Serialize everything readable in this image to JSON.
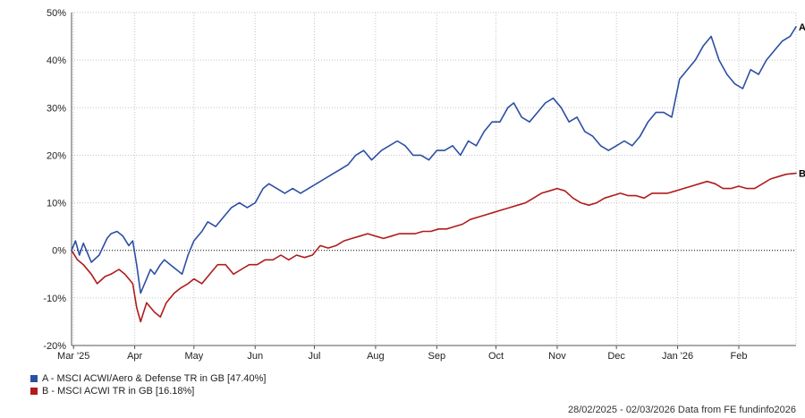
{
  "chart_data": {
    "type": "line",
    "ylim": [
      -20,
      50
    ],
    "y_ticks": [
      -20,
      -10,
      0,
      10,
      20,
      30,
      40,
      50
    ],
    "y_tick_suffix": "%",
    "grid": true,
    "x_tick_labels": [
      "Mar '25",
      "Apr",
      "May",
      "Jun",
      "Jul",
      "Aug",
      "Sep",
      "Oct",
      "Nov",
      "Dec",
      "Jan '26",
      "Feb"
    ],
    "x_tick_dates": [
      "2025-03-01",
      "2025-04-01",
      "2025-05-01",
      "2025-06-01",
      "2025-07-01",
      "2025-08-01",
      "2025-09-01",
      "2025-10-01",
      "2025-11-01",
      "2025-12-01",
      "2026-01-01",
      "2026-02-01"
    ],
    "x_range": [
      "2025-02-28",
      "2026-03-02"
    ],
    "series": [
      {
        "name": "A",
        "color": "#2b4fa3",
        "x": [
          "2025-02-28",
          "2025-03-02",
          "2025-03-04",
          "2025-03-06",
          "2025-03-08",
          "2025-03-10",
          "2025-03-14",
          "2025-03-18",
          "2025-03-20",
          "2025-03-23",
          "2025-03-26",
          "2025-03-29",
          "2025-03-31",
          "2025-04-02",
          "2025-04-04",
          "2025-04-07",
          "2025-04-09",
          "2025-04-11",
          "2025-04-14",
          "2025-04-16",
          "2025-04-19",
          "2025-04-22",
          "2025-04-25",
          "2025-04-28",
          "2025-05-01",
          "2025-05-05",
          "2025-05-08",
          "2025-05-12",
          "2025-05-16",
          "2025-05-20",
          "2025-05-24",
          "2025-05-28",
          "2025-06-01",
          "2025-06-05",
          "2025-06-08",
          "2025-06-12",
          "2025-06-16",
          "2025-06-20",
          "2025-06-24",
          "2025-06-28",
          "2025-07-02",
          "2025-07-06",
          "2025-07-10",
          "2025-07-14",
          "2025-07-18",
          "2025-07-22",
          "2025-07-26",
          "2025-07-30",
          "2025-08-04",
          "2025-08-08",
          "2025-08-12",
          "2025-08-16",
          "2025-08-20",
          "2025-08-24",
          "2025-08-28",
          "2025-09-01",
          "2025-09-05",
          "2025-09-09",
          "2025-09-13",
          "2025-09-17",
          "2025-09-21",
          "2025-09-25",
          "2025-09-29",
          "2025-10-03",
          "2025-10-07",
          "2025-10-10",
          "2025-10-14",
          "2025-10-18",
          "2025-10-22",
          "2025-10-26",
          "2025-10-30",
          "2025-11-03",
          "2025-11-07",
          "2025-11-11",
          "2025-11-15",
          "2025-11-19",
          "2025-11-23",
          "2025-11-27",
          "2025-12-01",
          "2025-12-05",
          "2025-12-09",
          "2025-12-13",
          "2025-12-17",
          "2025-12-21",
          "2025-12-25",
          "2025-12-29",
          "2026-01-02",
          "2026-01-06",
          "2026-01-10",
          "2026-01-14",
          "2026-01-18",
          "2026-01-22",
          "2026-01-26",
          "2026-01-30",
          "2026-02-03",
          "2026-02-07",
          "2026-02-11",
          "2026-02-15",
          "2026-02-19",
          "2026-02-23",
          "2026-02-27",
          "2026-03-02"
        ],
        "values": [
          0,
          2,
          -1,
          1.5,
          -0.5,
          -2.5,
          -1,
          2.5,
          3.5,
          4,
          3,
          1,
          2,
          -3,
          -9,
          -6,
          -4,
          -5,
          -3,
          -2,
          -3,
          -4,
          -5,
          -1,
          2,
          4,
          6,
          5,
          7,
          9,
          10,
          9,
          10,
          13,
          14,
          13,
          12,
          13,
          12,
          13,
          14,
          15,
          16,
          17,
          18,
          20,
          21,
          19,
          21,
          22,
          23,
          22,
          20,
          20,
          19,
          21,
          21,
          22,
          20,
          23,
          22,
          25,
          27,
          27,
          30,
          31,
          28,
          27,
          29,
          31,
          32,
          30,
          27,
          28,
          25,
          24,
          22,
          21,
          22,
          23,
          22,
          24,
          27,
          29,
          29,
          28,
          36,
          38,
          40,
          43,
          45,
          40,
          37,
          35,
          34,
          38,
          37,
          40,
          42,
          44,
          45,
          47
        ]
      },
      {
        "name": "B",
        "color": "#b01c1c",
        "x": [
          "2025-02-28",
          "2025-03-03",
          "2025-03-06",
          "2025-03-10",
          "2025-03-13",
          "2025-03-17",
          "2025-03-20",
          "2025-03-24",
          "2025-03-27",
          "2025-03-31",
          "2025-04-02",
          "2025-04-04",
          "2025-04-07",
          "2025-04-09",
          "2025-04-11",
          "2025-04-14",
          "2025-04-17",
          "2025-04-21",
          "2025-04-24",
          "2025-04-28",
          "2025-05-01",
          "2025-05-05",
          "2025-05-09",
          "2025-05-13",
          "2025-05-17",
          "2025-05-21",
          "2025-05-25",
          "2025-05-29",
          "2025-06-02",
          "2025-06-06",
          "2025-06-10",
          "2025-06-14",
          "2025-06-18",
          "2025-06-22",
          "2025-06-26",
          "2025-06-30",
          "2025-07-04",
          "2025-07-08",
          "2025-07-12",
          "2025-07-16",
          "2025-07-20",
          "2025-07-24",
          "2025-07-28",
          "2025-08-01",
          "2025-08-05",
          "2025-08-09",
          "2025-08-13",
          "2025-08-17",
          "2025-08-21",
          "2025-08-25",
          "2025-08-29",
          "2025-09-02",
          "2025-09-06",
          "2025-09-10",
          "2025-09-14",
          "2025-09-18",
          "2025-09-22",
          "2025-09-26",
          "2025-09-30",
          "2025-10-04",
          "2025-10-08",
          "2025-10-12",
          "2025-10-16",
          "2025-10-20",
          "2025-10-24",
          "2025-10-28",
          "2025-11-01",
          "2025-11-05",
          "2025-11-09",
          "2025-11-13",
          "2025-11-17",
          "2025-11-21",
          "2025-11-25",
          "2025-11-29",
          "2025-12-03",
          "2025-12-07",
          "2025-12-11",
          "2025-12-15",
          "2025-12-19",
          "2025-12-23",
          "2025-12-27",
          "2025-12-31",
          "2026-01-04",
          "2026-01-08",
          "2026-01-12",
          "2026-01-16",
          "2026-01-20",
          "2026-01-24",
          "2026-01-28",
          "2026-02-01",
          "2026-02-05",
          "2026-02-09",
          "2026-02-13",
          "2026-02-17",
          "2026-02-21",
          "2026-02-25",
          "2026-03-02"
        ],
        "values": [
          0,
          -2,
          -3,
          -5,
          -7,
          -5.5,
          -5,
          -4,
          -5,
          -7,
          -12,
          -15,
          -11,
          -12,
          -13,
          -14,
          -11,
          -9,
          -8,
          -7,
          -6,
          -7,
          -5,
          -3,
          -3,
          -5,
          -4,
          -3,
          -3,
          -2,
          -2,
          -1,
          -2,
          -1,
          -1.5,
          -1,
          1,
          0.5,
          1,
          2,
          2.5,
          3,
          3.5,
          3,
          2.5,
          3,
          3.5,
          3.5,
          3.5,
          4,
          4,
          4.5,
          4.5,
          5,
          5.5,
          6.5,
          7,
          7.5,
          8,
          8.5,
          9,
          9.5,
          10,
          11,
          12,
          12.5,
          13,
          12.5,
          11,
          10,
          9.5,
          10,
          11,
          11.5,
          12,
          11.5,
          11.5,
          11,
          12,
          12,
          12,
          12.5,
          13,
          13.5,
          14,
          14.5,
          14,
          13,
          13,
          13.5,
          13,
          13,
          14,
          15,
          15.5,
          16,
          16.2
        ]
      }
    ]
  },
  "legend": {
    "items": [
      {
        "label": "A - MSCI ACWI/Aero & Defense TR in GB [47.40%]",
        "color": "#2b4fa3"
      },
      {
        "label": "B - MSCI ACWI TR in GB [16.18%]",
        "color": "#b01c1c"
      }
    ]
  },
  "footer": {
    "text": "28/02/2025 - 02/03/2026 Data from FE fundinfo2026"
  }
}
